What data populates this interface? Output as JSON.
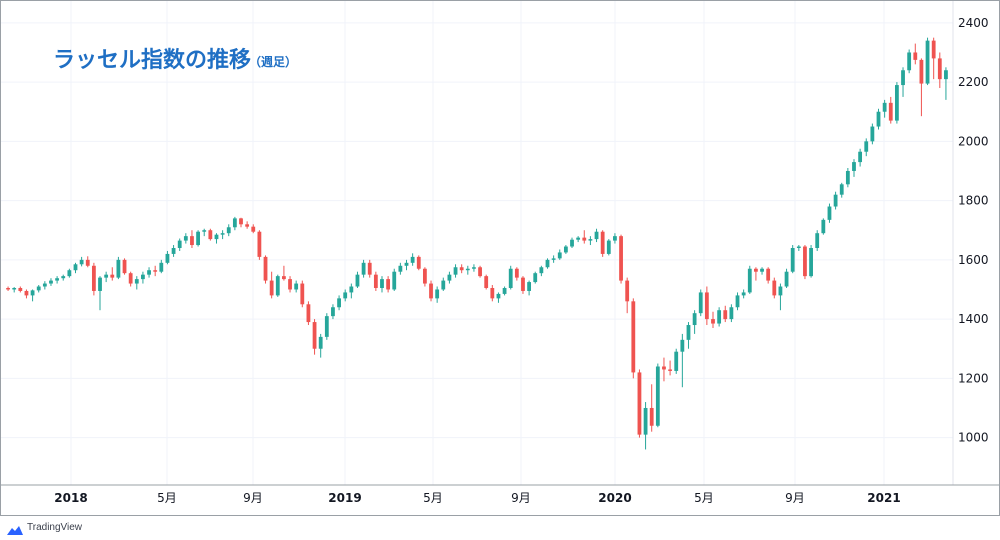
{
  "footer": {
    "brand": "TradingView",
    "logo_icon": "tradingview-cloud-icon"
  },
  "colors": {
    "up": "#26a69a",
    "down": "#ef5350",
    "title": "#1f6fc4",
    "grid": "#f0f3fa",
    "axis": "#131722"
  },
  "chart_data": {
    "type": "candlestick",
    "title": "ラッセル指数の推移",
    "subtitle": "（週足）",
    "ylim": [
      840,
      2440
    ],
    "y_ticks": [
      "1000",
      "1200",
      "1400",
      "1600",
      "1800",
      "2000",
      "2200",
      "2400"
    ],
    "x_ticks": [
      {
        "label": "2018",
        "bold": true
      },
      {
        "label": "5月",
        "bold": false
      },
      {
        "label": "9月",
        "bold": false
      },
      {
        "label": "2019",
        "bold": true
      },
      {
        "label": "5月",
        "bold": false
      },
      {
        "label": "9月",
        "bold": false
      },
      {
        "label": "2020",
        "bold": true
      },
      {
        "label": "5月",
        "bold": false
      },
      {
        "label": "9月",
        "bold": false
      },
      {
        "label": "2021",
        "bold": true
      }
    ],
    "grid": true,
    "y_axis_position": "right",
    "series": [
      {
        "values": [
          [
            1505,
            1510,
            1495,
            1500
          ],
          [
            1500,
            1508,
            1490,
            1505
          ],
          [
            1505,
            1510,
            1490,
            1495
          ],
          [
            1495,
            1500,
            1470,
            1480
          ],
          [
            1480,
            1500,
            1460,
            1497
          ],
          [
            1497,
            1515,
            1490,
            1510
          ],
          [
            1510,
            1528,
            1500,
            1520
          ],
          [
            1520,
            1538,
            1512,
            1530
          ],
          [
            1530,
            1545,
            1520,
            1538
          ],
          [
            1538,
            1550,
            1530,
            1545
          ],
          [
            1545,
            1570,
            1540,
            1565
          ],
          [
            1565,
            1590,
            1555,
            1585
          ],
          [
            1585,
            1610,
            1578,
            1600
          ],
          [
            1600,
            1612,
            1575,
            1580
          ],
          [
            1580,
            1590,
            1480,
            1495
          ],
          [
            1495,
            1545,
            1430,
            1540
          ],
          [
            1540,
            1560,
            1525,
            1550
          ],
          [
            1550,
            1575,
            1530,
            1540
          ],
          [
            1540,
            1610,
            1535,
            1600
          ],
          [
            1600,
            1605,
            1550,
            1555
          ],
          [
            1555,
            1560,
            1510,
            1520
          ],
          [
            1520,
            1545,
            1500,
            1535
          ],
          [
            1535,
            1560,
            1520,
            1550
          ],
          [
            1550,
            1575,
            1540,
            1565
          ],
          [
            1565,
            1580,
            1545,
            1560
          ],
          [
            1560,
            1600,
            1555,
            1590
          ],
          [
            1590,
            1630,
            1585,
            1620
          ],
          [
            1620,
            1650,
            1610,
            1640
          ],
          [
            1640,
            1672,
            1630,
            1665
          ],
          [
            1665,
            1690,
            1655,
            1680
          ],
          [
            1680,
            1700,
            1640,
            1650
          ],
          [
            1650,
            1700,
            1645,
            1695
          ],
          [
            1695,
            1705,
            1680,
            1700
          ],
          [
            1700,
            1705,
            1665,
            1670
          ],
          [
            1670,
            1690,
            1655,
            1685
          ],
          [
            1685,
            1700,
            1670,
            1690
          ],
          [
            1690,
            1720,
            1680,
            1710
          ],
          [
            1710,
            1745,
            1700,
            1740
          ],
          [
            1740,
            1742,
            1710,
            1720
          ],
          [
            1720,
            1730,
            1705,
            1712
          ],
          [
            1712,
            1720,
            1690,
            1695
          ],
          [
            1695,
            1700,
            1600,
            1610
          ],
          [
            1610,
            1615,
            1520,
            1530
          ],
          [
            1530,
            1560,
            1470,
            1480
          ],
          [
            1480,
            1550,
            1475,
            1545
          ],
          [
            1545,
            1580,
            1530,
            1535
          ],
          [
            1535,
            1545,
            1490,
            1500
          ],
          [
            1500,
            1530,
            1490,
            1520
          ],
          [
            1520,
            1530,
            1440,
            1450
          ],
          [
            1450,
            1460,
            1380,
            1390
          ],
          [
            1390,
            1400,
            1280,
            1300
          ],
          [
            1300,
            1350,
            1270,
            1340
          ],
          [
            1340,
            1420,
            1330,
            1410
          ],
          [
            1410,
            1450,
            1400,
            1440
          ],
          [
            1440,
            1480,
            1430,
            1470
          ],
          [
            1470,
            1500,
            1460,
            1490
          ],
          [
            1490,
            1520,
            1470,
            1510
          ],
          [
            1510,
            1560,
            1505,
            1550
          ],
          [
            1550,
            1600,
            1540,
            1590
          ],
          [
            1590,
            1600,
            1540,
            1550
          ],
          [
            1550,
            1560,
            1495,
            1505
          ],
          [
            1505,
            1545,
            1490,
            1535
          ],
          [
            1535,
            1545,
            1490,
            1500
          ],
          [
            1500,
            1570,
            1495,
            1560
          ],
          [
            1560,
            1590,
            1550,
            1580
          ],
          [
            1580,
            1600,
            1565,
            1590
          ],
          [
            1590,
            1622,
            1580,
            1610
          ],
          [
            1610,
            1615,
            1565,
            1570
          ],
          [
            1570,
            1575,
            1510,
            1520
          ],
          [
            1520,
            1530,
            1460,
            1470
          ],
          [
            1470,
            1510,
            1455,
            1500
          ],
          [
            1500,
            1540,
            1495,
            1530
          ],
          [
            1530,
            1560,
            1520,
            1550
          ],
          [
            1550,
            1585,
            1540,
            1575
          ],
          [
            1575,
            1585,
            1555,
            1565
          ],
          [
            1565,
            1580,
            1550,
            1570
          ],
          [
            1570,
            1585,
            1560,
            1575
          ],
          [
            1575,
            1580,
            1540,
            1545
          ],
          [
            1545,
            1550,
            1500,
            1505
          ],
          [
            1505,
            1515,
            1460,
            1470
          ],
          [
            1470,
            1490,
            1455,
            1485
          ],
          [
            1485,
            1510,
            1480,
            1505
          ],
          [
            1505,
            1580,
            1500,
            1570
          ],
          [
            1570,
            1575,
            1530,
            1540
          ],
          [
            1540,
            1545,
            1485,
            1495
          ],
          [
            1495,
            1530,
            1480,
            1525
          ],
          [
            1525,
            1560,
            1520,
            1555
          ],
          [
            1555,
            1580,
            1545,
            1575
          ],
          [
            1575,
            1605,
            1570,
            1600
          ],
          [
            1600,
            1615,
            1590,
            1605
          ],
          [
            1605,
            1635,
            1600,
            1625
          ],
          [
            1625,
            1650,
            1620,
            1645
          ],
          [
            1645,
            1675,
            1640,
            1668
          ],
          [
            1668,
            1680,
            1660,
            1675
          ],
          [
            1675,
            1700,
            1655,
            1665
          ],
          [
            1665,
            1680,
            1650,
            1670
          ],
          [
            1670,
            1705,
            1660,
            1695
          ],
          [
            1695,
            1700,
            1610,
            1620
          ],
          [
            1620,
            1670,
            1615,
            1665
          ],
          [
            1665,
            1690,
            1655,
            1680
          ],
          [
            1680,
            1685,
            1520,
            1530
          ],
          [
            1530,
            1540,
            1420,
            1460
          ],
          [
            1460,
            1470,
            1200,
            1220
          ],
          [
            1220,
            1230,
            1000,
            1010
          ],
          [
            1010,
            1120,
            960,
            1100
          ],
          [
            1100,
            1180,
            1020,
            1040
          ],
          [
            1040,
            1250,
            1035,
            1240
          ],
          [
            1240,
            1270,
            1190,
            1230
          ],
          [
            1230,
            1260,
            1210,
            1225
          ],
          [
            1225,
            1300,
            1215,
            1290
          ],
          [
            1290,
            1350,
            1170,
            1330
          ],
          [
            1330,
            1390,
            1300,
            1380
          ],
          [
            1380,
            1430,
            1350,
            1420
          ],
          [
            1420,
            1500,
            1410,
            1490
          ],
          [
            1490,
            1510,
            1380,
            1400
          ],
          [
            1400,
            1425,
            1370,
            1385
          ],
          [
            1385,
            1440,
            1375,
            1430
          ],
          [
            1430,
            1445,
            1390,
            1400
          ],
          [
            1400,
            1450,
            1390,
            1440
          ],
          [
            1440,
            1490,
            1430,
            1480
          ],
          [
            1480,
            1500,
            1470,
            1490
          ],
          [
            1490,
            1580,
            1485,
            1570
          ],
          [
            1570,
            1575,
            1530,
            1560
          ],
          [
            1560,
            1575,
            1550,
            1570
          ],
          [
            1570,
            1575,
            1520,
            1530
          ],
          [
            1530,
            1540,
            1470,
            1480
          ],
          [
            1480,
            1520,
            1430,
            1510
          ],
          [
            1510,
            1570,
            1505,
            1560
          ],
          [
            1560,
            1650,
            1555,
            1640
          ],
          [
            1640,
            1650,
            1630,
            1645
          ],
          [
            1645,
            1650,
            1535,
            1545
          ],
          [
            1545,
            1650,
            1540,
            1640
          ],
          [
            1640,
            1700,
            1630,
            1690
          ],
          [
            1690,
            1740,
            1685,
            1735
          ],
          [
            1735,
            1790,
            1725,
            1780
          ],
          [
            1780,
            1830,
            1770,
            1820
          ],
          [
            1820,
            1860,
            1810,
            1855
          ],
          [
            1855,
            1910,
            1845,
            1900
          ],
          [
            1900,
            1940,
            1880,
            1930
          ],
          [
            1930,
            1975,
            1915,
            1965
          ],
          [
            1965,
            2010,
            1950,
            2000
          ],
          [
            2000,
            2060,
            1990,
            2050
          ],
          [
            2050,
            2110,
            2040,
            2100
          ],
          [
            2100,
            2140,
            2080,
            2130
          ],
          [
            2130,
            2150,
            2060,
            2070
          ],
          [
            2070,
            2200,
            2060,
            2190
          ],
          [
            2190,
            2250,
            2150,
            2240
          ],
          [
            2240,
            2310,
            2230,
            2300
          ],
          [
            2300,
            2330,
            2260,
            2275
          ],
          [
            2275,
            2280,
            2085,
            2195
          ],
          [
            2195,
            2350,
            2190,
            2340
          ],
          [
            2340,
            2350,
            2210,
            2280
          ],
          [
            2280,
            2300,
            2180,
            2210
          ],
          [
            2210,
            2250,
            2140,
            2240
          ]
        ]
      }
    ]
  }
}
